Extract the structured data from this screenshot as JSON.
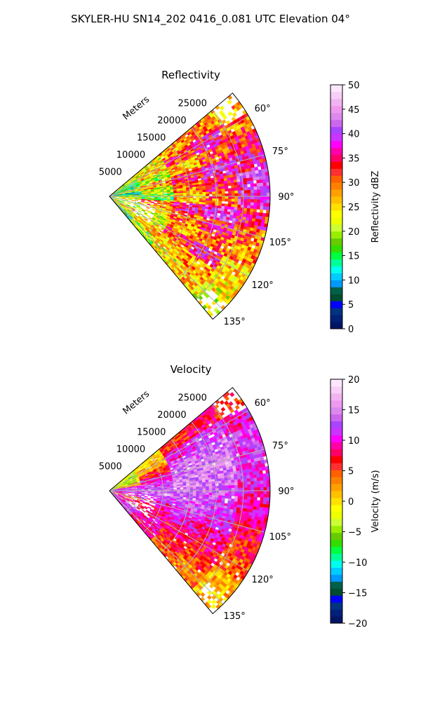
{
  "figure": {
    "title": "SKYLER-HU  SN14_202  0416_0.081 UTC Elevation 04°"
  },
  "chart_data": [
    {
      "type": "heatmap",
      "projection": "polar-sector",
      "title": "Reflectivity",
      "theta_range_deg": [
        50,
        140
      ],
      "theta_ticks": [
        "60°",
        "75°",
        "90°",
        "105°",
        "120°",
        "135°"
      ],
      "r_label": "Meters",
      "r_ticks": [
        "5000",
        "10000",
        "15000",
        "20000",
        "25000"
      ],
      "grid": true,
      "colorbar": {
        "label": "Reflectivity dBZ",
        "range": [
          0,
          50
        ],
        "ticks": [
          "0",
          "5",
          "10",
          "15",
          "20",
          "25",
          "30",
          "35",
          "40",
          "45",
          "50"
        ],
        "colors": [
          "#001566",
          "#00207a",
          "#003380",
          "#0000ff",
          "#004d30",
          "#00604a",
          "#0099ff",
          "#00ccff",
          "#00ffee",
          "#00ff99",
          "#00ff40",
          "#33dd00",
          "#66cc00",
          "#99ee00",
          "#ccff33",
          "#eeff00",
          "#ffff00",
          "#ffe000",
          "#ffc000",
          "#ffa000",
          "#ff8000",
          "#ff6000",
          "#ff3030",
          "#ff0000",
          "#ff0066",
          "#ff00aa",
          "#ff00ff",
          "#cc33ff",
          "#aa44ff",
          "#cc66ee",
          "#dd88ee",
          "#ee99ee",
          "#f2b3f2",
          "#f7cff7",
          "#ffe6ff"
        ]
      },
      "field_levels": [
        {
          "range_m": [
            0,
            6000
          ],
          "values": [
            22,
            18,
            14,
            22,
            12,
            20,
            24,
            18,
            20,
            26,
            22,
            14
          ]
        },
        {
          "range_m": [
            6000,
            12000
          ],
          "values": [
            24,
            26,
            20,
            28,
            22,
            18,
            30,
            26,
            22,
            24,
            26,
            20
          ]
        },
        {
          "range_m": [
            12000,
            18000
          ],
          "values": [
            28,
            32,
            26,
            34,
            30,
            26,
            36,
            30,
            28,
            32,
            26,
            24
          ]
        },
        {
          "range_m": [
            18000,
            24000
          ],
          "values": [
            30,
            36,
            32,
            38,
            34,
            30,
            40,
            34,
            30,
            36,
            28,
            26
          ]
        },
        {
          "range_m": [
            24000,
            30000
          ],
          "values": [
            26,
            30,
            34,
            36,
            40,
            38,
            34,
            30,
            28,
            26,
            24,
            22
          ]
        }
      ]
    },
    {
      "type": "heatmap",
      "projection": "polar-sector",
      "title": "Velocity",
      "theta_range_deg": [
        50,
        140
      ],
      "theta_ticks": [
        "60°",
        "75°",
        "90°",
        "105°",
        "120°",
        "135°"
      ],
      "r_label": "Meters",
      "r_ticks": [
        "5000",
        "10000",
        "15000",
        "20000",
        "25000"
      ],
      "grid": true,
      "colorbar": {
        "label": "Velocity (m/s)",
        "range": [
          -20,
          20
        ],
        "ticks": [
          "−20",
          "−15",
          "−10",
          "−5",
          "0",
          "5",
          "10",
          "15",
          "20"
        ],
        "colors": [
          "#001566",
          "#00207a",
          "#003380",
          "#0000ff",
          "#004d30",
          "#00604a",
          "#0099ff",
          "#00ccff",
          "#00ffee",
          "#00ff99",
          "#00ff40",
          "#33dd00",
          "#66cc00",
          "#99ee00",
          "#ccff33",
          "#eeff00",
          "#ffff00",
          "#ffe000",
          "#ffc000",
          "#ffa000",
          "#ff8000",
          "#ff6000",
          "#ff3030",
          "#ff0000",
          "#ff0066",
          "#ff00aa",
          "#ff00ff",
          "#cc33ff",
          "#aa44ff",
          "#cc66ee",
          "#dd88ee",
          "#ee99ee",
          "#f2b3f2",
          "#f7cff7",
          "#ffe6ff"
        ]
      },
      "field_levels": [
        {
          "range_m": [
            0,
            6000
          ],
          "values": [
            -2,
            -4,
            -3,
            2,
            12,
            13,
            10,
            6,
            8,
            10,
            11,
            12
          ]
        },
        {
          "range_m": [
            6000,
            12000
          ],
          "values": [
            0,
            2,
            6,
            10,
            12,
            14,
            12,
            10,
            8,
            9,
            10,
            8
          ]
        },
        {
          "range_m": [
            12000,
            18000
          ],
          "values": [
            6,
            10,
            13,
            14,
            15,
            14,
            13,
            12,
            10,
            8,
            6,
            4
          ]
        },
        {
          "range_m": [
            18000,
            24000
          ],
          "values": [
            8,
            12,
            14,
            15,
            14,
            13,
            12,
            11,
            9,
            7,
            5,
            3
          ]
        },
        {
          "range_m": [
            24000,
            30000
          ],
          "values": [
            6,
            10,
            12,
            12,
            11,
            10,
            9,
            8,
            6,
            4,
            2,
            1
          ]
        }
      ]
    }
  ]
}
